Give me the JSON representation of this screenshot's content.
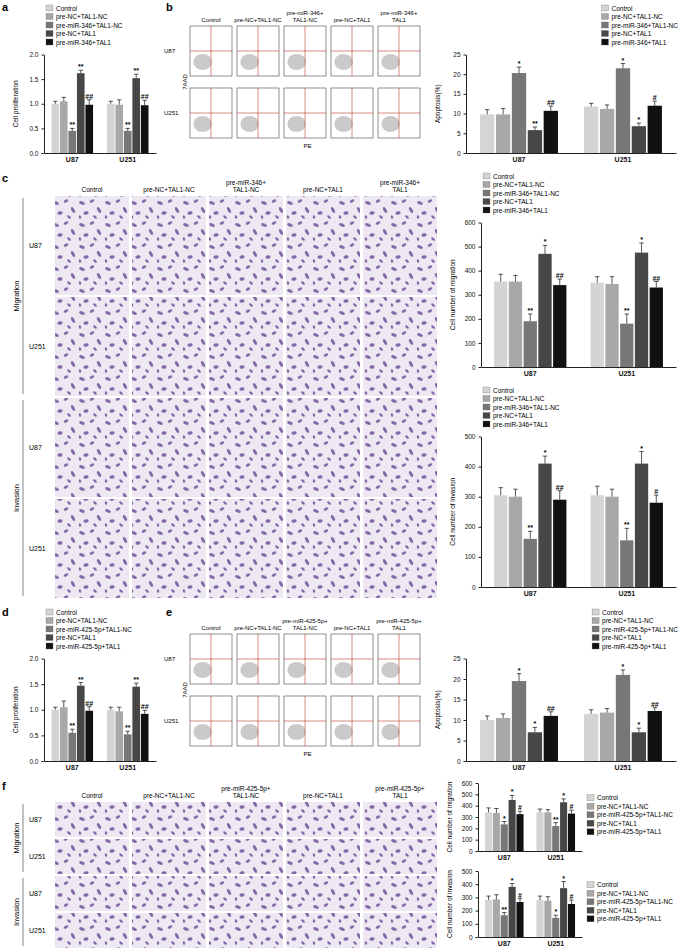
{
  "chart_data": [
    {
      "type": "bar",
      "y_label": "Cell proliferation",
      "categories": [
        "U87",
        "U251"
      ],
      "ylim": [
        0,
        2
      ],
      "yticks": [
        {
          "value": 0,
          "label": "0.0"
        },
        {
          "value": 0.5,
          "label": "0.5"
        },
        {
          "value": 1,
          "label": "1.0"
        },
        {
          "value": 1.5,
          "label": "1.5"
        },
        {
          "value": 2,
          "label": "2.0"
        }
      ],
      "legend": "top-left",
      "series": [
        {
          "name": "Control",
          "color": "#d4d4d4",
          "values": [
            1.0,
            1.0
          ],
          "errors": [
            0.05,
            0.05
          ],
          "significance": [
            null,
            null
          ]
        },
        {
          "name": "pre-NC+TAL1-NC",
          "color": "#a8a8a8",
          "values": [
            1.05,
            0.98
          ],
          "errors": [
            0.08,
            0.1
          ],
          "significance": [
            null,
            null
          ]
        },
        {
          "name": "pre-miR-346+TAL1-NC",
          "color": "#777777",
          "values": [
            0.45,
            0.45
          ],
          "errors": [
            0.05,
            0.05
          ],
          "significance": [
            "**",
            "**"
          ]
        },
        {
          "name": "pre-NC+TAL1",
          "color": "#474747",
          "values": [
            1.62,
            1.52
          ],
          "errors": [
            0.06,
            0.08
          ],
          "significance": [
            "**",
            "**"
          ]
        },
        {
          "name": "pre-miR-346+TAL1",
          "color": "#111111",
          "values": [
            0.98,
            0.97
          ],
          "errors": [
            0.1,
            0.1
          ],
          "significance": [
            "##",
            "##"
          ]
        }
      ]
    },
    {
      "type": "bar",
      "y_label": "Apoptosis(%)",
      "categories": [
        "U87",
        "U251"
      ],
      "ylim": [
        0,
        25
      ],
      "yticks": [
        0,
        5,
        10,
        15,
        20,
        25
      ],
      "legend": "top-right",
      "series": [
        {
          "name": "Control",
          "color": "#d4d4d4",
          "values": [
            9.8,
            11.8
          ],
          "errors": [
            1.2,
            0.8
          ],
          "significance": [
            null,
            null
          ]
        },
        {
          "name": "pre-NC+TAL1-NC",
          "color": "#a8a8a8",
          "values": [
            9.8,
            11.2
          ],
          "errors": [
            1.5,
            1.0
          ],
          "significance": [
            null,
            null
          ]
        },
        {
          "name": "pre-miR-346+TAL1-NC",
          "color": "#777777",
          "values": [
            20.3,
            21.5
          ],
          "errors": [
            1.5,
            1.2
          ],
          "significance": [
            "*",
            "*"
          ]
        },
        {
          "name": "pre-NC+TAL1",
          "color": "#474747",
          "values": [
            5.8,
            6.8
          ],
          "errors": [
            0.8,
            0.8
          ],
          "significance": [
            "**",
            "*"
          ]
        },
        {
          "name": "pre-miR-346+TAL1",
          "color": "#111111",
          "values": [
            10.7,
            12.0
          ],
          "errors": [
            1.2,
            1.2
          ],
          "significance": [
            "##",
            "#"
          ]
        }
      ]
    },
    {
      "type": "bar",
      "y_label": "Cell number of migration",
      "categories": [
        "U87",
        "U251"
      ],
      "ylim": [
        0,
        600
      ],
      "yticks": [
        0,
        100,
        200,
        300,
        400,
        500,
        600
      ],
      "legend": "top-left",
      "series": [
        {
          "name": "Control",
          "color": "#d4d4d4",
          "values": [
            355,
            350
          ],
          "errors": [
            30,
            25
          ],
          "significance": [
            null,
            null
          ]
        },
        {
          "name": "pre-NC+TAL1-NC",
          "color": "#a8a8a8",
          "values": [
            355,
            345
          ],
          "errors": [
            25,
            30
          ],
          "significance": [
            null,
            null
          ]
        },
        {
          "name": "pre-miR-346+TAL1-NC",
          "color": "#777777",
          "values": [
            190,
            180
          ],
          "errors": [
            30,
            40
          ],
          "significance": [
            "**",
            "**"
          ]
        },
        {
          "name": "pre-NC+TAL1",
          "color": "#474747",
          "values": [
            470,
            475
          ],
          "errors": [
            35,
            40
          ],
          "significance": [
            "*",
            "*"
          ]
        },
        {
          "name": "pre-miR-346+TAL1",
          "color": "#111111",
          "values": [
            340,
            330
          ],
          "errors": [
            25,
            25
          ],
          "significance": [
            "##",
            "##"
          ]
        }
      ]
    },
    {
      "type": "bar",
      "y_label": "Cell number of invasion",
      "categories": [
        "U87",
        "U251"
      ],
      "ylim": [
        0,
        500
      ],
      "yticks": [
        0,
        100,
        200,
        300,
        400,
        500
      ],
      "legend": "top-left",
      "series": [
        {
          "name": "Control",
          "color": "#d4d4d4",
          "values": [
            305,
            305
          ],
          "errors": [
            25,
            30
          ],
          "significance": [
            null,
            null
          ]
        },
        {
          "name": "pre-NC+TAL1-NC",
          "color": "#a8a8a8",
          "values": [
            300,
            300
          ],
          "errors": [
            25,
            25
          ],
          "significance": [
            null,
            null
          ]
        },
        {
          "name": "pre-miR-346+TAL1-NC",
          "color": "#777777",
          "values": [
            160,
            155
          ],
          "errors": [
            25,
            40
          ],
          "significance": [
            "**",
            "**"
          ]
        },
        {
          "name": "pre-NC+TAL1",
          "color": "#474747",
          "values": [
            410,
            410
          ],
          "errors": [
            25,
            40
          ],
          "significance": [
            "*",
            "*"
          ]
        },
        {
          "name": "pre-miR-346+TAL1",
          "color": "#111111",
          "values": [
            290,
            280
          ],
          "errors": [
            30,
            25
          ],
          "significance": [
            "##",
            "#"
          ]
        }
      ]
    },
    {
      "type": "bar",
      "y_label": "Cell proliferation",
      "categories": [
        "U87",
        "U251"
      ],
      "ylim": [
        0,
        2
      ],
      "yticks": [
        {
          "value": 0,
          "label": "0.0"
        },
        {
          "value": 0.5,
          "label": "0.5"
        },
        {
          "value": 1,
          "label": "1.0"
        },
        {
          "value": 1.5,
          "label": "1.5"
        },
        {
          "value": 2,
          "label": "2.0"
        }
      ],
      "legend": "top-left",
      "series": [
        {
          "name": "Control",
          "color": "#d4d4d4",
          "values": [
            1.0,
            1.0
          ],
          "errors": [
            0.05,
            0.05
          ],
          "significance": [
            null,
            null
          ]
        },
        {
          "name": "pre-NC+TAL1-NC",
          "color": "#a8a8a8",
          "values": [
            1.05,
            0.97
          ],
          "errors": [
            0.12,
            0.08
          ],
          "significance": [
            null,
            null
          ]
        },
        {
          "name": "pre-miR-425-5p+TAL1-NC",
          "color": "#777777",
          "values": [
            0.55,
            0.52
          ],
          "errors": [
            0.07,
            0.06
          ],
          "significance": [
            "**",
            "**"
          ]
        },
        {
          "name": "pre-NC+TAL1",
          "color": "#474747",
          "values": [
            1.47,
            1.45
          ],
          "errors": [
            0.06,
            0.07
          ],
          "significance": [
            "**",
            "**"
          ]
        },
        {
          "name": "pre-miR-425-5p+TAL1",
          "color": "#111111",
          "values": [
            0.98,
            0.92
          ],
          "errors": [
            0.08,
            0.07
          ],
          "significance": [
            "##",
            "##"
          ]
        }
      ]
    },
    {
      "type": "bar",
      "y_label": "Apoptosis(%)",
      "categories": [
        "U87",
        "U251"
      ],
      "ylim": [
        0,
        25
      ],
      "yticks": [
        0,
        5,
        10,
        15,
        20,
        25
      ],
      "legend": "top-right",
      "series": [
        {
          "name": "Control",
          "color": "#d4d4d4",
          "values": [
            10.0,
            11.5
          ],
          "errors": [
            1.0,
            1.0
          ],
          "significance": [
            null,
            null
          ]
        },
        {
          "name": "pre-NC+TAL1-NC",
          "color": "#a8a8a8",
          "values": [
            10.5,
            11.8
          ],
          "errors": [
            1.0,
            1.0
          ],
          "significance": [
            null,
            null
          ]
        },
        {
          "name": "pre-miR-425-5p+TAL1-NC",
          "color": "#777777",
          "values": [
            19.5,
            21.0
          ],
          "errors": [
            1.8,
            1.2
          ],
          "significance": [
            "*",
            "*"
          ]
        },
        {
          "name": "pre-NC+TAL1",
          "color": "#474747",
          "values": [
            7.0,
            7.0
          ],
          "errors": [
            1.2,
            1.0
          ],
          "significance": [
            "*",
            "*"
          ]
        },
        {
          "name": "pre-miR-425-5p+TAL1",
          "color": "#111111",
          "values": [
            11.0,
            12.2
          ],
          "errors": [
            1.0,
            0.8
          ],
          "significance": [
            "##",
            "##"
          ]
        }
      ]
    },
    {
      "type": "bar",
      "y_label": "Cell number of migration",
      "categories": [
        "U87",
        "U251"
      ],
      "ylim": [
        0,
        600
      ],
      "yticks": [
        0,
        100,
        200,
        300,
        400,
        500,
        600
      ],
      "legend": "right",
      "series": [
        {
          "name": "Control",
          "color": "#d4d4d4",
          "values": [
            340,
            340
          ],
          "errors": [
            40,
            30
          ],
          "significance": [
            null,
            null
          ]
        },
        {
          "name": "pre-NC+TAL1-NC",
          "color": "#a8a8a8",
          "values": [
            335,
            340
          ],
          "errors": [
            40,
            25
          ],
          "significance": [
            null,
            null
          ]
        },
        {
          "name": "pre-miR-425-5p+TAL1-NC",
          "color": "#777777",
          "values": [
            235,
            220
          ],
          "errors": [
            25,
            30
          ],
          "significance": [
            "*",
            "**"
          ]
        },
        {
          "name": "pre-NC+TAL1",
          "color": "#474747",
          "values": [
            450,
            430
          ],
          "errors": [
            40,
            30
          ],
          "significance": [
            "*",
            "*"
          ]
        },
        {
          "name": "pre-miR-425-5p+TAL1",
          "color": "#111111",
          "values": [
            325,
            330
          ],
          "errors": [
            25,
            30
          ],
          "significance": [
            "#",
            "#"
          ]
        }
      ]
    },
    {
      "type": "bar",
      "y_label": "Cell number of invasion",
      "categories": [
        "U87",
        "U251"
      ],
      "ylim": [
        0,
        500
      ],
      "yticks": [
        0,
        100,
        200,
        300,
        400,
        500
      ],
      "legend": "right",
      "series": [
        {
          "name": "Control",
          "color": "#d4d4d4",
          "values": [
            280,
            280
          ],
          "errors": [
            30,
            30
          ],
          "significance": [
            null,
            null
          ]
        },
        {
          "name": "pre-NC+TAL1-NC",
          "color": "#a8a8a8",
          "values": [
            285,
            275
          ],
          "errors": [
            35,
            30
          ],
          "significance": [
            null,
            null
          ]
        },
        {
          "name": "pre-miR-425-5p+TAL1-NC",
          "color": "#777777",
          "values": [
            165,
            145
          ],
          "errors": [
            20,
            20
          ],
          "significance": [
            "**",
            "*"
          ]
        },
        {
          "name": "pre-NC+TAL1",
          "color": "#474747",
          "values": [
            380,
            370
          ],
          "errors": [
            25,
            50
          ],
          "significance": [
            "*",
            "*"
          ]
        },
        {
          "name": "pre-miR-425-5p+TAL1",
          "color": "#111111",
          "values": [
            265,
            250
          ],
          "errors": [
            25,
            30
          ],
          "significance": [
            "#",
            "#"
          ]
        }
      ]
    }
  ],
  "figure": {
    "panel_letters": [
      "a",
      "b",
      "c",
      "d",
      "e",
      "f"
    ],
    "flow_panels": [
      {
        "columns": [
          [
            "Control"
          ],
          [
            "pre-NC+TAL1-NC"
          ],
          [
            "pre-miR-346+",
            "TAL1-NC"
          ],
          [
            "pre-NC+TAL1"
          ],
          [
            "pre-miR-346+",
            "TAL1"
          ]
        ],
        "rows": [
          "U87",
          "U251"
        ],
        "x_label": "PE",
        "y_label": "7AAD"
      },
      {
        "columns": [
          [
            "Control"
          ],
          [
            "pre-NC+TAL1-NC"
          ],
          [
            "pre-miR-425-5p+",
            "TAL1-NC"
          ],
          [
            "pre-NC+TAL1"
          ],
          [
            "pre-miR-425-5p+",
            "TAL1"
          ]
        ],
        "rows": [
          "U87",
          "U251"
        ],
        "x_label": "PE",
        "y_label": "7AAD"
      }
    ],
    "image_panels": [
      {
        "columns": [
          [
            "Control"
          ],
          [
            "pre-NC+TAL1-NC"
          ],
          [
            "pre-miR-346+",
            "TAL1-NC"
          ],
          [
            "pre-NC+TAL1"
          ],
          [
            "pre-miR-346+",
            "TAL1"
          ]
        ],
        "groups": [
          {
            "label": "Migration",
            "rows": [
              "U87",
              "U251"
            ]
          },
          {
            "label": "Invasion",
            "rows": [
              "U87",
              "U251"
            ]
          }
        ]
      },
      {
        "columns": [
          [
            "Control"
          ],
          [
            "pre-NC+TAL1-NC"
          ],
          [
            "pre-miR-425-5p+",
            "TAL1-NC"
          ],
          [
            "pre-NC+TAL1"
          ],
          [
            "pre-miR-425-5p+",
            "TAL1"
          ]
        ],
        "groups": [
          {
            "label": "Migration",
            "rows": [
              "U87",
              "U251"
            ]
          },
          {
            "label": "Invasion",
            "rows": [
              "U87",
              "U251"
            ]
          }
        ]
      }
    ]
  }
}
